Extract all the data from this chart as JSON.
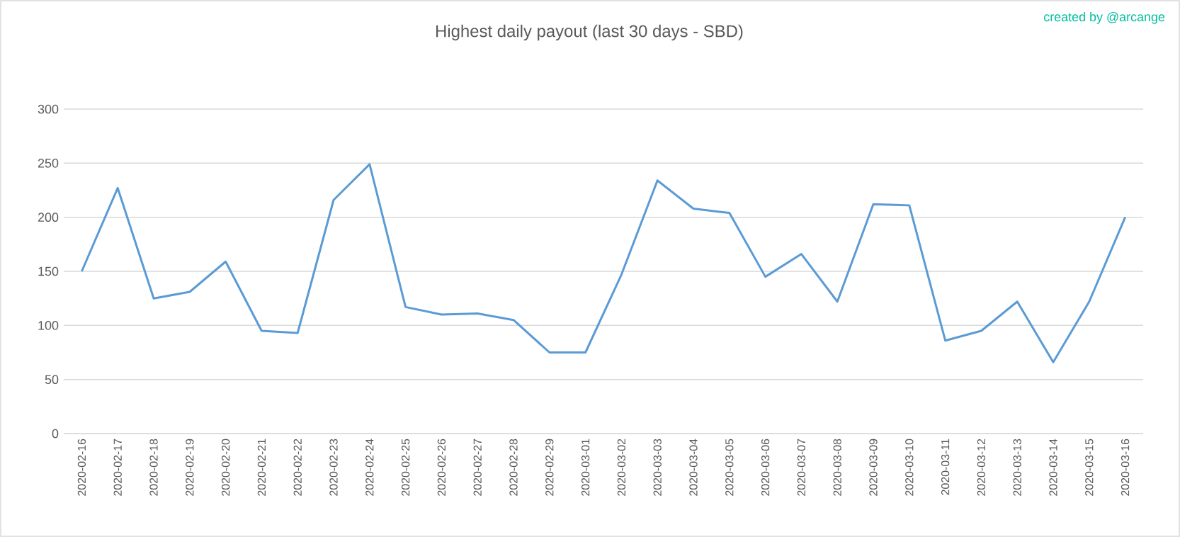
{
  "chart_data": {
    "type": "line",
    "title": "Highest daily payout (last 30 days - SBD)",
    "annotations": [
      "created by @arcange"
    ],
    "categories": [
      "2020-02-16",
      "2020-02-17",
      "2020-02-18",
      "2020-02-19",
      "2020-02-20",
      "2020-02-21",
      "2020-02-22",
      "2020-02-23",
      "2020-02-24",
      "2020-02-25",
      "2020-02-26",
      "2020-02-27",
      "2020-02-28",
      "2020-02-29",
      "2020-03-01",
      "2020-03-02",
      "2020-03-03",
      "2020-03-04",
      "2020-03-05",
      "2020-03-06",
      "2020-03-07",
      "2020-03-08",
      "2020-03-09",
      "2020-03-10",
      "2020-03-11",
      "2020-03-12",
      "2020-03-13",
      "2020-03-14",
      "2020-03-15",
      "2020-03-16"
    ],
    "series": [
      {
        "color": "#5b9bd5",
        "values": [
          150,
          227,
          125,
          131,
          159,
          95,
          93,
          216,
          249,
          117,
          110,
          111,
          105,
          75,
          75,
          147,
          234,
          208,
          204,
          145,
          166,
          122,
          212,
          211,
          86,
          95,
          122,
          66,
          122,
          200
        ]
      }
    ],
    "ylim": [
      0,
      300
    ],
    "yticks": [
      0,
      50,
      100,
      150,
      200,
      250,
      300
    ],
    "grid": "y",
    "marker": "none",
    "line_style": "solid"
  }
}
